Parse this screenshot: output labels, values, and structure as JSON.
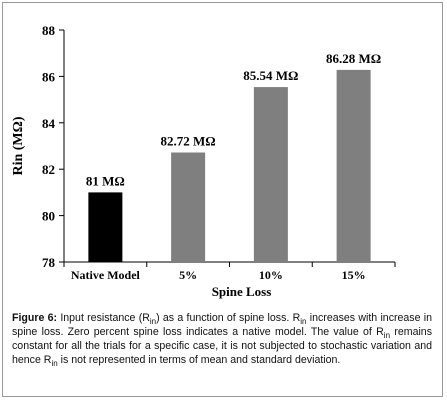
{
  "chart_data": {
    "type": "bar",
    "title": "",
    "xlabel": "Spine Loss",
    "ylabel": "Rin (MΩ)",
    "ylim": [
      78,
      88
    ],
    "yticks": [
      78,
      80,
      82,
      84,
      86,
      88
    ],
    "categories": [
      "Native Model",
      "5%",
      "10%",
      "15%"
    ],
    "values": [
      81,
      82.72,
      85.54,
      86.28
    ],
    "data_labels": [
      "81 MΩ",
      "82.72 MΩ",
      "85.54 MΩ",
      "86.28 MΩ"
    ],
    "bar_colors": [
      "#000000",
      "#7f7f7f",
      "#7f7f7f",
      "#7f7f7f"
    ],
    "grid": false,
    "legend": "none"
  },
  "caption": {
    "label": "Figure 6:",
    "segments": [
      {
        "t": " Input resistance (R"
      },
      {
        "sub": "in"
      },
      {
        "t": ") as a function of spine loss. R"
      },
      {
        "sub": "in"
      },
      {
        "t": " increases with increase in spine loss. Zero percent spine loss indicates a native model. The value of R"
      },
      {
        "sub": "in"
      },
      {
        "t": " remains constant for all the trials for a specific case, it is not subjected to stochastic variation and hence R"
      },
      {
        "sub": "in"
      },
      {
        "t": " is not represented in terms of mean and standard deviation."
      }
    ]
  }
}
